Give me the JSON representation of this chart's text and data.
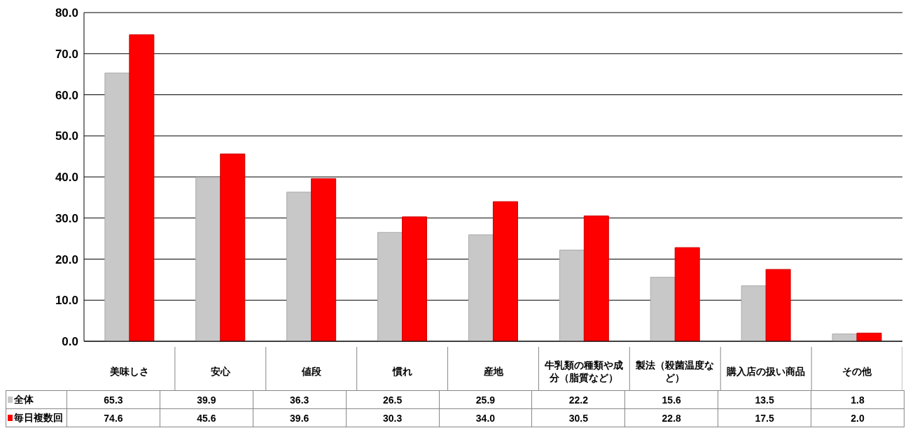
{
  "chart_data": {
    "type": "bar",
    "categories": [
      "美味しさ",
      "安心",
      "値段",
      "慣れ",
      "産地",
      "牛乳類の種類や成分（脂質など）",
      "製法（殺菌温度など）",
      "購入店の扱い商品",
      "その他"
    ],
    "series": [
      {
        "name": "全体",
        "color": "#c8c8c8",
        "values": [
          65.3,
          39.9,
          36.3,
          26.5,
          25.9,
          22.2,
          15.6,
          13.5,
          1.8
        ],
        "value_labels": [
          "65.3",
          "39.9",
          "36.3",
          "26.5",
          "25.9",
          "22.2",
          "15.6",
          "13.5",
          "1.8"
        ]
      },
      {
        "name": "毎日複数回",
        "color": "#ff0000",
        "values": [
          74.6,
          45.6,
          39.6,
          30.3,
          34.0,
          30.5,
          22.8,
          17.5,
          2.0
        ],
        "value_labels": [
          "74.6",
          "45.6",
          "39.6",
          "30.3",
          "34.0",
          "30.5",
          "22.8",
          "17.5",
          "2.0"
        ]
      }
    ],
    "ylim": [
      0,
      80
    ],
    "yticks": [
      {
        "value": 0,
        "label": "0.0"
      },
      {
        "value": 10,
        "label": "10.0"
      },
      {
        "value": 20,
        "label": "20.0"
      },
      {
        "value": 30,
        "label": "30.0"
      },
      {
        "value": 40,
        "label": "40.0"
      },
      {
        "value": 50,
        "label": "50.0"
      },
      {
        "value": 60,
        "label": "60.0"
      },
      {
        "value": 70,
        "label": "70.0"
      },
      {
        "value": 80,
        "label": "80.0"
      }
    ],
    "grid": "y",
    "legend": "bottom left"
  }
}
